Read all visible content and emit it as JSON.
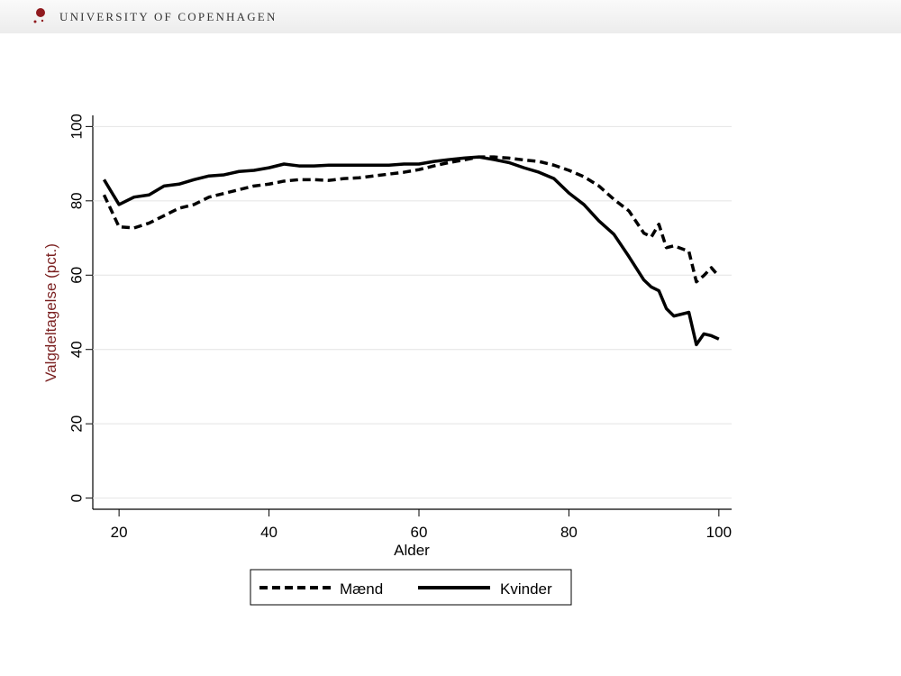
{
  "header": {
    "title": "UNIVERSITY OF COPENHAGEN"
  },
  "chart_data": {
    "type": "line",
    "x_label": "Alder",
    "y_label": "Valgdeltagelse (pct.)",
    "x": [
      18,
      20,
      22,
      24,
      26,
      28,
      30,
      32,
      34,
      36,
      38,
      40,
      42,
      44,
      46,
      48,
      50,
      52,
      54,
      56,
      58,
      60,
      62,
      64,
      66,
      68,
      70,
      72,
      74,
      76,
      78,
      80,
      82,
      84,
      86,
      88,
      90,
      91,
      92,
      93,
      94,
      96,
      97,
      98,
      99,
      100
    ],
    "series": [
      {
        "name": "Mænd",
        "color": "#000000",
        "linestyle": "dashed",
        "values": [
          81.6,
          73,
          72.7,
          74,
          76,
          78,
          79,
          81,
          82,
          83,
          84,
          84.5,
          85.3,
          85.7,
          85.7,
          85.5,
          86,
          86.2,
          86.7,
          87.2,
          87.7,
          88.4,
          89.4,
          90.3,
          91,
          91.8,
          91.8,
          91.5,
          91,
          90.6,
          89.6,
          88.2,
          86.5,
          84,
          80.4,
          77.3,
          71.3,
          70.3,
          73.7,
          67.4,
          67.9,
          66.4,
          58.2,
          59.9,
          62,
          59.7
        ]
      },
      {
        "name": "Kvinder",
        "color": "#000000",
        "linestyle": "solid",
        "values": [
          85.7,
          79,
          81,
          81.6,
          84,
          84.5,
          85.7,
          86.7,
          87,
          87.9,
          88.2,
          88.9,
          89.9,
          89.4,
          89.4,
          89.6,
          89.6,
          89.6,
          89.6,
          89.6,
          89.9,
          89.9,
          90.6,
          91.1,
          91.5,
          91.8,
          91.1,
          90.3,
          88.9,
          87.7,
          86,
          82.1,
          79,
          74.6,
          71,
          65,
          58.7,
          56.8,
          55.8,
          51,
          49,
          50,
          41.3,
          44.2,
          43.7,
          42.8
        ]
      }
    ],
    "xlim": [
      16.5,
      101.7
    ],
    "xticks": [
      20,
      40,
      60,
      80,
      100
    ],
    "ylim": [
      -3,
      103
    ],
    "yticks": [
      0,
      20,
      40,
      60,
      80,
      100
    ],
    "grid": true,
    "legend": "bottom"
  }
}
